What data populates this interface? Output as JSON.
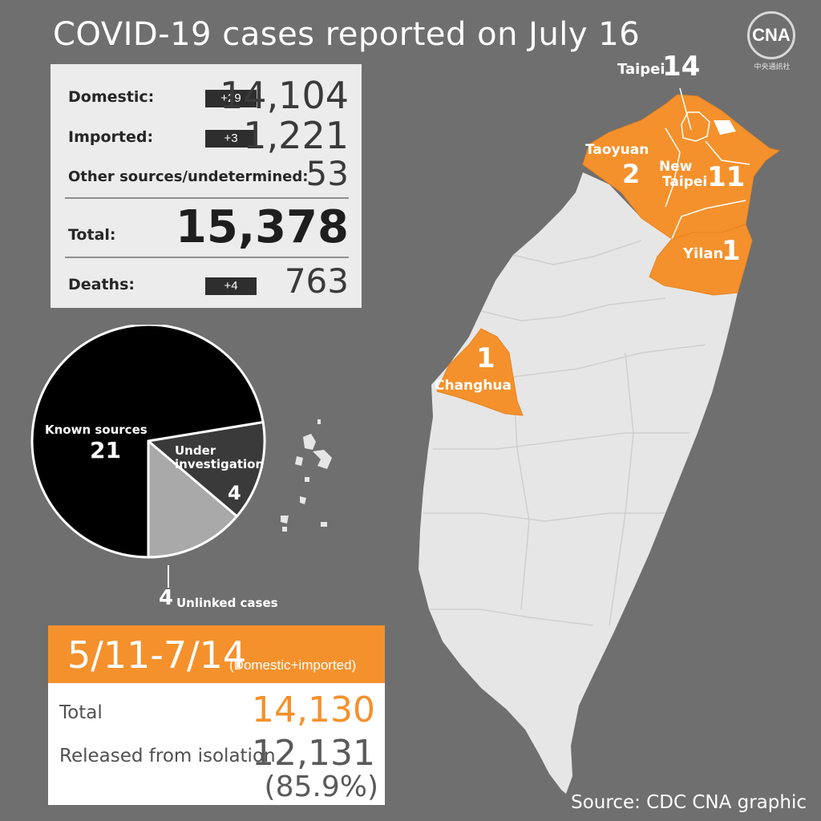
{
  "header": {
    "title": "COVID-19 cases reported on July 16"
  },
  "logo": {
    "mark": "CNA",
    "subtitle": "中央通訊社"
  },
  "stats": {
    "domestic": {
      "label": "Domestic:",
      "delta": "+29",
      "value": "14,104"
    },
    "imported": {
      "label": "Imported:",
      "delta": "+3",
      "value": "1,221"
    },
    "other": {
      "label": "Other sources/undetermined:",
      "value": "53"
    },
    "total": {
      "label": "Total:",
      "value": "15,378"
    },
    "deaths": {
      "label": "Deaths:",
      "delta": "+4",
      "value": "763"
    }
  },
  "pie": {
    "known": {
      "label": "Known sources",
      "value": "21"
    },
    "investigation": {
      "label_line1": "Under",
      "label_line2": "investigation",
      "value": "4"
    },
    "unlinked": {
      "value": "4",
      "label": "Unlinked cases"
    }
  },
  "chart_data": {
    "type": "pie",
    "title": "",
    "categories": [
      "Known sources",
      "Under investigation",
      "Unlinked cases"
    ],
    "values": [
      21,
      4,
      4
    ],
    "colors": [
      "#000000",
      "#3a3a3a",
      "#a9a9a9"
    ]
  },
  "summary": {
    "range": "5/11-7/14",
    "note": "(Domestic+imported)",
    "total_label": "Total",
    "total_value": "14,130",
    "released_label": "Released from isolation",
    "released_value": "12,131",
    "released_pct": "(85.9%)"
  },
  "map": {
    "regions": [
      {
        "name": "Taipei",
        "value": "14"
      },
      {
        "name": "Taoyuan",
        "value": "2"
      },
      {
        "name_line1": "New",
        "name_line2": "Taipei",
        "value": "11"
      },
      {
        "name": "Yilan",
        "value": "1"
      },
      {
        "name": "Changhua",
        "value": "1"
      }
    ]
  },
  "footer": {
    "source": "Source: CDC  CNA graphic"
  },
  "colors": {
    "accent": "#f4912c",
    "background": "#6f6f6f",
    "land": "#e6e6e6",
    "panel": "#ececec"
  }
}
